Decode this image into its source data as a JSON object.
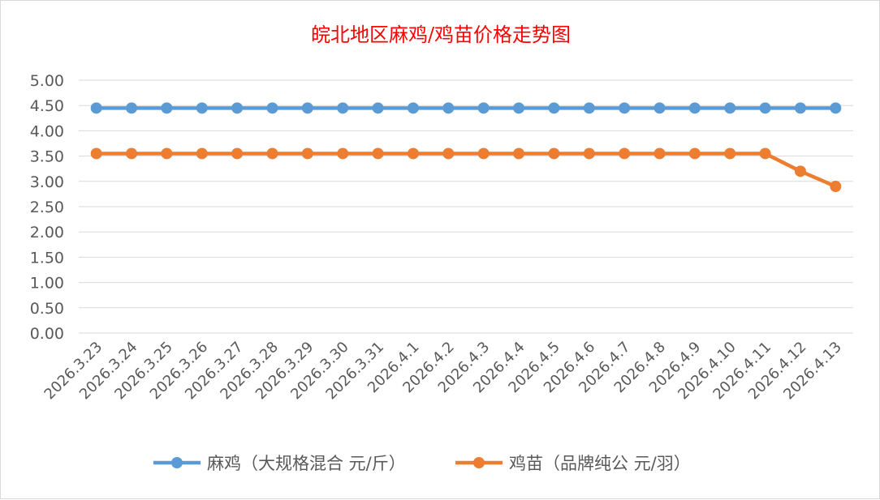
{
  "chart_data": {
    "type": "line",
    "title": "皖北地区麻鸡/鸡苗价格走势图",
    "xlabel": "",
    "ylabel": "",
    "categories": [
      "2026.3.23",
      "2026.3.24",
      "2026.3.25",
      "2026.3.26",
      "2026.3.27",
      "2026.3.28",
      "2026.3.29",
      "2026.3.30",
      "2026.3.31",
      "2026.4.1",
      "2026.4.2",
      "2026.4.3",
      "2026.4.4",
      "2026.4.5",
      "2026.4.6",
      "2026.4.7",
      "2026.4.8",
      "2026.4.9",
      "2026.4.10",
      "2026.4.11",
      "2026.4.12",
      "2026.4.13"
    ],
    "ylim": [
      0,
      5
    ],
    "yticks": [
      "0.00",
      "0.50",
      "1.00",
      "1.50",
      "2.00",
      "2.50",
      "3.00",
      "3.50",
      "4.00",
      "4.50",
      "5.00"
    ],
    "grid": true,
    "legend_position": "bottom",
    "series": [
      {
        "name": "麻鸡（大规格混合 元/斤）",
        "color": "#5b9bd5",
        "values": [
          4.45,
          4.45,
          4.45,
          4.45,
          4.45,
          4.45,
          4.45,
          4.45,
          4.45,
          4.45,
          4.45,
          4.45,
          4.45,
          4.45,
          4.45,
          4.45,
          4.45,
          4.45,
          4.45,
          4.45,
          4.45,
          4.45
        ]
      },
      {
        "name": "鸡苗（品牌纯公 元/羽）",
        "color": "#ed7d31",
        "values": [
          3.55,
          3.55,
          3.55,
          3.55,
          3.55,
          3.55,
          3.55,
          3.55,
          3.55,
          3.55,
          3.55,
          3.55,
          3.55,
          3.55,
          3.55,
          3.55,
          3.55,
          3.55,
          3.55,
          3.55,
          3.2,
          2.9
        ]
      }
    ]
  }
}
